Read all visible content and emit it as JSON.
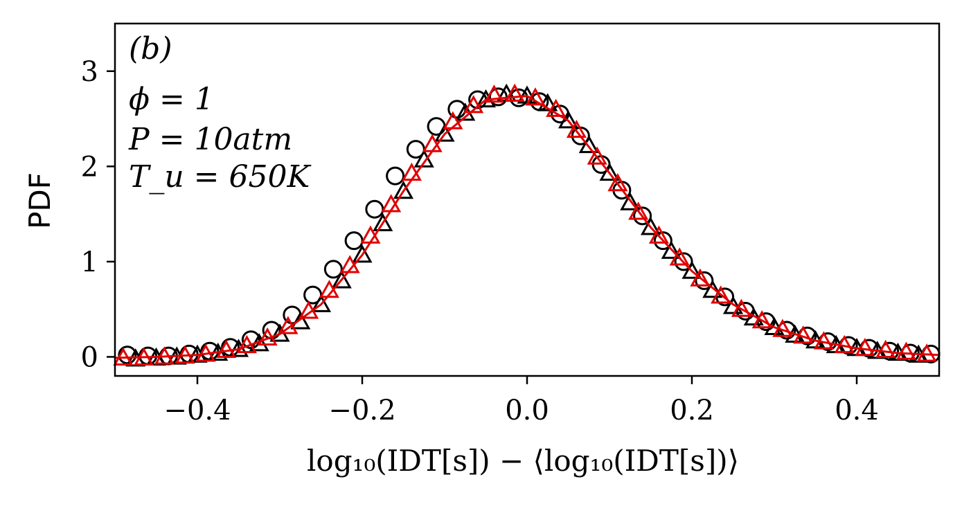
{
  "chart_data": {
    "type": "line",
    "panel_label": "(b)",
    "annotations": [
      "(b)",
      "ϕ = 1",
      "P = 10atm",
      "T_u = 650K"
    ],
    "xlabel": "log₁₀(IDT[s]) − ⟨log₁₀(IDT[s])⟩",
    "ylabel": "PDF",
    "xlim": [
      -0.5,
      0.5
    ],
    "ylim": [
      -0.2,
      3.5
    ],
    "xticks": [
      -0.4,
      -0.2,
      0.0,
      0.2,
      0.4
    ],
    "xtick_labels": [
      "−0.4",
      "−0.2",
      "0.0",
      "0.2",
      "0.4"
    ],
    "yticks": [
      0,
      1,
      2,
      3
    ],
    "ytick_labels": [
      "0",
      "1",
      "2",
      "3"
    ],
    "grid": false,
    "legend": null,
    "colors": {
      "black": "#000000",
      "red": "#e00000"
    },
    "series": [
      {
        "marker": "circle",
        "color": "#000000",
        "x": [
          -0.485,
          -0.46,
          -0.435,
          -0.41,
          -0.385,
          -0.36,
          -0.335,
          -0.31,
          -0.285,
          -0.26,
          -0.235,
          -0.21,
          -0.185,
          -0.16,
          -0.135,
          -0.11,
          -0.085,
          -0.06,
          -0.035,
          -0.01,
          0.015,
          0.04,
          0.065,
          0.09,
          0.115,
          0.14,
          0.165,
          0.19,
          0.215,
          0.24,
          0.265,
          0.29,
          0.315,
          0.34,
          0.365,
          0.39,
          0.415,
          0.44,
          0.465,
          0.49
        ],
        "y": [
          0.02,
          0.01,
          0.01,
          0.03,
          0.06,
          0.1,
          0.18,
          0.28,
          0.44,
          0.65,
          0.92,
          1.22,
          1.55,
          1.9,
          2.18,
          2.42,
          2.6,
          2.7,
          2.73,
          2.72,
          2.68,
          2.55,
          2.32,
          2.02,
          1.75,
          1.48,
          1.22,
          1.0,
          0.8,
          0.63,
          0.48,
          0.37,
          0.28,
          0.22,
          0.16,
          0.12,
          0.09,
          0.06,
          0.04,
          0.03
        ]
      },
      {
        "marker": "triangle",
        "color": "#000000",
        "x": [
          -0.475,
          -0.45,
          -0.425,
          -0.4,
          -0.375,
          -0.35,
          -0.325,
          -0.3,
          -0.275,
          -0.25,
          -0.225,
          -0.2,
          -0.175,
          -0.15,
          -0.125,
          -0.1,
          -0.075,
          -0.05,
          -0.025,
          0.0,
          0.025,
          0.05,
          0.075,
          0.1,
          0.125,
          0.15,
          0.175,
          0.2,
          0.225,
          0.25,
          0.275,
          0.3,
          0.325,
          0.35,
          0.375,
          0.4,
          0.425,
          0.45,
          0.475
        ],
        "y": [
          -0.02,
          -0.01,
          0.0,
          0.02,
          0.04,
          0.08,
          0.14,
          0.24,
          0.37,
          0.55,
          0.8,
          1.07,
          1.4,
          1.74,
          2.07,
          2.34,
          2.56,
          2.7,
          2.76,
          2.74,
          2.66,
          2.48,
          2.22,
          1.93,
          1.62,
          1.36,
          1.11,
          0.9,
          0.7,
          0.53,
          0.41,
          0.31,
          0.23,
          0.17,
          0.12,
          0.09,
          0.06,
          0.04,
          0.02
        ]
      },
      {
        "marker": "triangle",
        "color": "#e00000",
        "x": [
          -0.49,
          -0.465,
          -0.44,
          -0.415,
          -0.39,
          -0.365,
          -0.34,
          -0.315,
          -0.29,
          -0.265,
          -0.24,
          -0.215,
          -0.19,
          -0.165,
          -0.14,
          -0.115,
          -0.09,
          -0.065,
          -0.04,
          -0.015,
          0.01,
          0.035,
          0.06,
          0.085,
          0.11,
          0.135,
          0.16,
          0.185,
          0.21,
          0.235,
          0.26,
          0.285,
          0.31,
          0.335,
          0.36,
          0.385,
          0.41,
          0.435,
          0.46,
          0.485
        ],
        "y": [
          -0.01,
          -0.01,
          0.0,
          0.01,
          0.03,
          0.07,
          0.12,
          0.2,
          0.32,
          0.48,
          0.7,
          0.96,
          1.27,
          1.6,
          1.93,
          2.23,
          2.47,
          2.64,
          2.75,
          2.76,
          2.72,
          2.6,
          2.38,
          2.1,
          1.82,
          1.52,
          1.27,
          1.04,
          0.82,
          0.64,
          0.5,
          0.38,
          0.29,
          0.22,
          0.16,
          0.12,
          0.09,
          0.07,
          0.05,
          0.03
        ]
      },
      {
        "marker": "none",
        "color": "#e00000",
        "x": [
          -0.5,
          -0.45,
          -0.4,
          -0.35,
          -0.3,
          -0.25,
          -0.2,
          -0.15,
          -0.1,
          -0.05,
          0.0,
          0.05,
          0.1,
          0.15,
          0.2,
          0.25,
          0.3,
          0.35,
          0.4,
          0.45,
          0.5
        ],
        "y": [
          -0.01,
          0.0,
          0.02,
          0.08,
          0.24,
          0.55,
          1.07,
          1.74,
          2.34,
          2.7,
          2.74,
          2.48,
          1.93,
          1.36,
          0.9,
          0.55,
          0.31,
          0.17,
          0.09,
          0.04,
          0.02
        ]
      }
    ]
  }
}
